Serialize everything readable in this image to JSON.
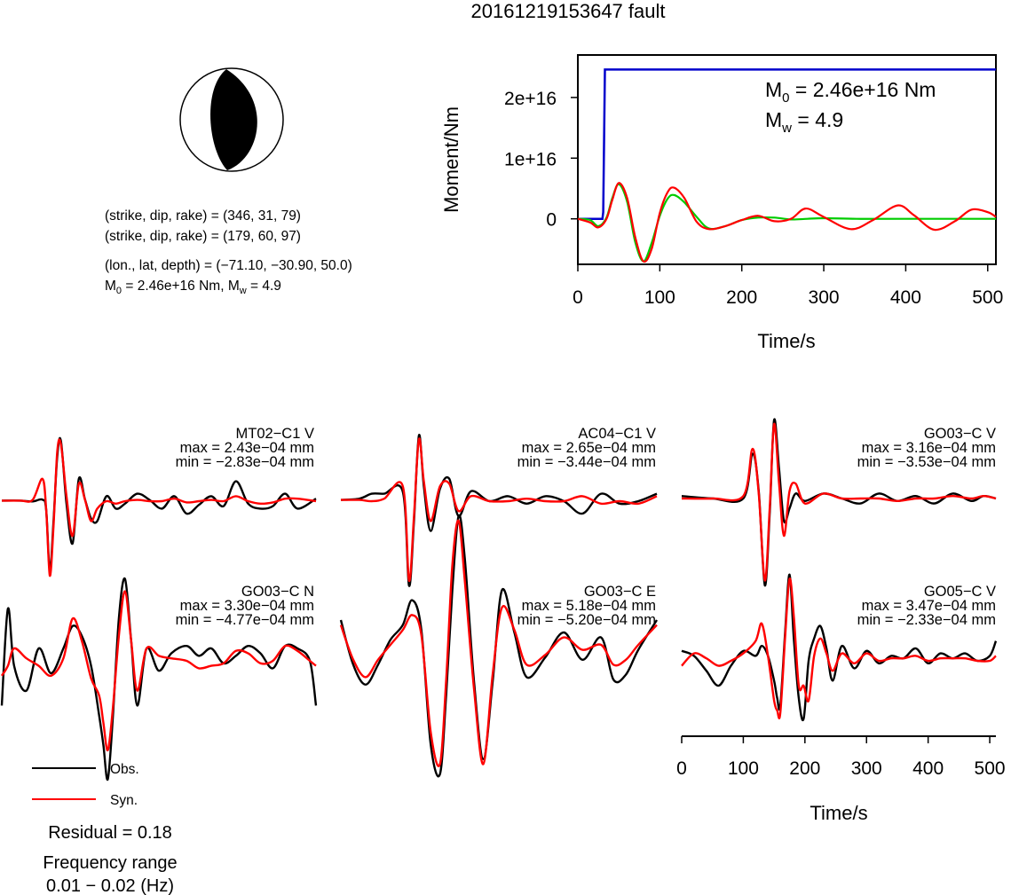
{
  "title": "20161219153647 fault",
  "mechanism": {
    "planes": [
      "(strike, dip, rake) = (346, 31, 79)",
      "(strike, dip, rake) = (179, 60, 97)"
    ],
    "location": "(lon., lat, depth) = (−71.10, −30.90, 50.0)",
    "moment_line": {
      "m0_label": "M",
      "m0_sub": "0",
      "m0_rest": " = 2.46e+16 Nm, M",
      "mw_sub": "w",
      "mw_rest": " = 4.9"
    }
  },
  "moment_plot": {
    "ylabel": "Moment/Nm",
    "xlabel": "Time/s",
    "xticks": [
      "0",
      "100",
      "200",
      "300",
      "400",
      "500"
    ],
    "yticks": [
      "0",
      "1e+16",
      "2e+16"
    ],
    "annot_m0": {
      "main": "M",
      "sub": "0",
      "rest": " = 2.46e+16 Nm"
    },
    "annot_mw": {
      "main": "M",
      "sub": "w",
      "rest": " = 4.9"
    }
  },
  "chart_data": [
    {
      "type": "line",
      "title": "",
      "xlabel": "Time/s",
      "ylabel": "Moment/Nm",
      "xlim": [
        0,
        510
      ],
      "ylim": [
        -7500000000000000.0,
        2.7e+16
      ],
      "grid": false,
      "series": [
        {
          "color": "#0000cc",
          "x": [
            0,
            30,
            31,
            33,
            510
          ],
          "y": [
            0,
            0,
            1100000000000000.0,
            2.46e+16,
            2.46e+16
          ]
        },
        {
          "color": "#00cc00",
          "x": [
            0,
            15,
            25,
            35,
            42,
            50,
            60,
            70,
            80,
            90,
            100,
            110,
            118,
            130,
            145,
            160,
            180,
            200,
            220,
            240,
            260,
            280,
            300,
            340,
            400,
            510
          ],
          "y": [
            0,
            -200000000000000.0,
            -1200000000000000.0,
            200000000000000.0,
            3400000000000000.0,
            5700000000000000.0,
            2900000000000000.0,
            -3800000000000000.0,
            -7000000000000000.0,
            -4000000000000000.0,
            500000000000000.0,
            3400000000000000.0,
            3900000000000000.0,
            2700000000000000.0,
            300000000000000.0,
            -1600000000000000.0,
            -1200000000000000.0,
            -200000000000000.0,
            200000000000000.0,
            200000000000000.0,
            -100000000000000.0,
            0,
            100000000000000.0,
            0,
            0,
            0
          ]
        },
        {
          "color": "#ff0000",
          "x": [
            0,
            15,
            25,
            35,
            42,
            50,
            60,
            70,
            80,
            90,
            100,
            110,
            118,
            130,
            145,
            160,
            180,
            200,
            220,
            240,
            260,
            278,
            300,
            333,
            360,
            390,
            410,
            435,
            460,
            480,
            500,
            510
          ],
          "y": [
            0,
            -600000000000000.0,
            -1400000000000000.0,
            0,
            3100000000000000.0,
            5900000000000000.0,
            3500000000000000.0,
            -3000000000000000.0,
            -7000000000000000.0,
            -5000000000000000.0,
            1000000000000000.0,
            4500000000000000.0,
            5100000000000000.0,
            3400000000000000.0,
            -500000000000000.0,
            -1700000000000000.0,
            -1200000000000000.0,
            -200000000000000.0,
            500000000000000.0,
            -400000000000000.0,
            0,
            1700000000000000.0,
            300000000000000.0,
            -1700000000000000.0,
            -200000000000000.0,
            2200000000000000.0,
            600000000000000.0,
            -1800000000000000.0,
            -400000000000000.0,
            1500000000000000.0,
            1100000000000000.0,
            300000000000000.0
          ]
        }
      ]
    },
    {
      "type": "line",
      "title": "MT02−C1 V",
      "max": "max = 2.43e−04 mm",
      "min": "min = −2.83e−04 mm",
      "series": [
        {
          "name": "Obs.",
          "color": "#000000",
          "x": [
            0,
            30,
            50,
            66,
            72,
            78,
            84,
            90,
            96,
            105,
            115,
            125,
            135,
            145,
            155,
            170,
            185,
            200,
            220,
            240,
            260,
            280,
            300,
            320,
            340,
            360,
            380,
            400,
            420,
            440,
            460,
            480,
            510
          ],
          "y": [
            0.02,
            0.02,
            -0.01,
            0.06,
            -0.34,
            -2.8,
            -0.8,
            1.8,
            2.43,
            -0.1,
            -1.7,
            0.9,
            0.08,
            -0.7,
            -0.8,
            0.2,
            -0.3,
            -0.1,
            0.3,
            0.05,
            -0.3,
            0.2,
            -0.5,
            -0.15,
            0.2,
            -0.2,
            0.8,
            -0.1,
            -0.3,
            -0.2,
            0.3,
            -0.3,
            0.1
          ]
        },
        {
          "name": "Syn.",
          "color": "#ff0000",
          "x": [
            0,
            30,
            50,
            66,
            72,
            78,
            84,
            90,
            96,
            105,
            115,
            125,
            135,
            145,
            155,
            170,
            185,
            200,
            220,
            240,
            260,
            280,
            300,
            320,
            340,
            360,
            380,
            400,
            420,
            440,
            460,
            480,
            510
          ],
          "y": [
            0.02,
            0.02,
            0.05,
            0.9,
            -0.32,
            -3.0,
            -1.0,
            2.0,
            2.3,
            0.2,
            -1.4,
            0.7,
            0.06,
            -0.8,
            -0.3,
            0.0,
            -0.1,
            0.0,
            0.05,
            0.0,
            0.0,
            0.1,
            -0.05,
            0.0,
            0.05,
            0.0,
            0.2,
            0.0,
            -0.1,
            -0.05,
            0.1,
            0.1,
            0.0
          ]
        }
      ]
    },
    {
      "type": "line",
      "title": "AC04−C1 V",
      "max": "max = 2.65e−04 mm",
      "min": "min = −3.44e−04 mm",
      "series": [
        {
          "name": "Obs.",
          "color": "#000000",
          "x": [
            0,
            30,
            50,
            70,
            100,
            110,
            118,
            126,
            134,
            145,
            160,
            175,
            190,
            210,
            240,
            270,
            300,
            330,
            360,
            390,
            420,
            450,
            480,
            510
          ],
          "y": [
            0.05,
            0.1,
            0.3,
            0.3,
            0.38,
            -3.4,
            -0.8,
            2.65,
            0.6,
            -1.2,
            0.5,
            0.9,
            -0.6,
            0.4,
            0.0,
            0.2,
            -0.1,
            0.2,
            0.0,
            -0.5,
            0.3,
            -0.1,
            0.0,
            0.3
          ]
        },
        {
          "name": "Syn.",
          "color": "#ff0000",
          "x": [
            0,
            30,
            50,
            70,
            100,
            110,
            118,
            126,
            134,
            145,
            160,
            175,
            190,
            210,
            240,
            270,
            300,
            330,
            360,
            390,
            420,
            450,
            480,
            510
          ],
          "y": [
            0.05,
            0.05,
            0.0,
            0.1,
            0.6,
            -3.2,
            -0.6,
            2.5,
            0.8,
            -0.8,
            0.6,
            0.7,
            -0.4,
            0.2,
            0.0,
            0.0,
            0.1,
            0.0,
            0.0,
            0.2,
            -0.1,
            0.0,
            -0.1,
            0.2
          ]
        }
      ]
    },
    {
      "type": "line",
      "title": "GO03−C V",
      "max": "max = 3.16e−04 mm",
      "min": "min = −3.53e−04 mm",
      "series": [
        {
          "name": "Obs.",
          "color": "#000000",
          "x": [
            0,
            50,
            100,
            115,
            125,
            135,
            143,
            150,
            158,
            166,
            175,
            185,
            200,
            230,
            260,
            290,
            320,
            350,
            380,
            410,
            440,
            470,
            490,
            510
          ],
          "y": [
            0.1,
            0.0,
            0.0,
            1.8,
            0.3,
            -3.5,
            -0.5,
            3.16,
            1.2,
            -0.9,
            -0.4,
            0.2,
            -0.1,
            0.2,
            0.0,
            -0.2,
            0.2,
            -0.1,
            0.1,
            -0.2,
            0.2,
            -0.1,
            0.1,
            0.0
          ]
        },
        {
          "name": "Syn.",
          "color": "#ff0000",
          "x": [
            0,
            50,
            100,
            115,
            125,
            135,
            143,
            150,
            158,
            166,
            175,
            185,
            200,
            230,
            260,
            290,
            320,
            350,
            380,
            410,
            440,
            470,
            490,
            510
          ],
          "y": [
            0.0,
            0.0,
            0.1,
            2.0,
            0.2,
            -3.3,
            -0.3,
            3.0,
            0.6,
            -1.5,
            0.3,
            0.6,
            -0.2,
            0.2,
            0.0,
            0.0,
            0.0,
            -0.1,
            0.0,
            0.0,
            0.1,
            0.0,
            0.1,
            0.0
          ]
        }
      ]
    },
    {
      "type": "line",
      "title": "GO03−C N",
      "max": "max = 3.30e−04 mm",
      "min": "min = −4.77e−04 mm",
      "series": [
        {
          "name": "Obs.",
          "color": "#000000",
          "x": [
            0,
            10,
            20,
            40,
            60,
            80,
            100,
            115,
            130,
            145,
            158,
            165,
            172,
            180,
            190,
            200,
            210,
            220,
            235,
            255,
            275,
            300,
            320,
            340,
            360,
            380,
            400,
            420,
            440,
            460,
            480,
            500,
            510
          ],
          "y": [
            -1.8,
            2.1,
            -0.2,
            -1.2,
            0.5,
            -0.5,
            0.5,
            1.4,
            1.0,
            -0.2,
            -2.2,
            -3.4,
            -4.77,
            -2.4,
            1.7,
            3.3,
            0.8,
            -1.8,
            0.5,
            -0.4,
            0.3,
            0.6,
            0.2,
            0.5,
            -0.1,
            0.2,
            0.6,
            0.3,
            -0.3,
            0.6,
            0.5,
            0.0,
            -1.8
          ]
        },
        {
          "name": "Syn.",
          "color": "#ff0000",
          "x": [
            0,
            10,
            20,
            40,
            60,
            80,
            100,
            115,
            130,
            145,
            158,
            165,
            172,
            180,
            190,
            200,
            210,
            220,
            235,
            255,
            275,
            300,
            320,
            340,
            360,
            380,
            400,
            420,
            440,
            460,
            480,
            500,
            510
          ],
          "y": [
            -0.6,
            -0.2,
            0.5,
            0.1,
            -0.2,
            -0.6,
            0.1,
            1.7,
            0.8,
            -0.7,
            -1.4,
            -2.5,
            -3.6,
            -2.0,
            1.0,
            2.8,
            0.8,
            -1.2,
            0.5,
            0.2,
            0.1,
            0.0,
            -0.3,
            -0.2,
            -0.1,
            0.4,
            0.3,
            -0.1,
            0.0,
            0.6,
            0.4,
            0.0,
            -0.2
          ]
        }
      ]
    },
    {
      "type": "line",
      "title": "GO03−C E",
      "max": "max = 5.18e−04 mm",
      "min": "min = −5.20e−04 mm",
      "series": [
        {
          "name": "Obs.",
          "color": "#000000",
          "x": [
            0,
            20,
            40,
            60,
            80,
            100,
            115,
            130,
            145,
            160,
            170,
            180,
            190,
            200,
            215,
            230,
            245,
            260,
            280,
            300,
            330,
            360,
            390,
            420,
            440,
            460,
            480,
            510
          ],
          "y": [
            1.0,
            -0.8,
            -1.6,
            -0.8,
            0.2,
            0.8,
            1.8,
            0.6,
            -4.0,
            -5.2,
            -2.0,
            2.2,
            5.18,
            3.5,
            -1.5,
            -4.6,
            -1.5,
            2.2,
            0.5,
            -1.3,
            -0.5,
            0.5,
            -0.6,
            0.3,
            -1.4,
            -1.2,
            -0.2,
            1.0
          ]
        },
        {
          "name": "Syn.",
          "color": "#ff0000",
          "x": [
            0,
            20,
            40,
            60,
            80,
            100,
            115,
            130,
            145,
            160,
            170,
            180,
            190,
            200,
            215,
            230,
            245,
            260,
            280,
            300,
            330,
            360,
            390,
            420,
            440,
            460,
            480,
            510
          ],
          "y": [
            0.8,
            -0.6,
            -1.3,
            -0.6,
            0.0,
            0.6,
            1.2,
            0.4,
            -3.5,
            -4.8,
            -1.4,
            3.2,
            5.0,
            2.6,
            -1.8,
            -4.8,
            -1.2,
            1.5,
            0.6,
            -0.8,
            -0.4,
            0.3,
            -0.2,
            0.0,
            -0.8,
            -0.6,
            0.0,
            0.8
          ]
        }
      ]
    },
    {
      "type": "line",
      "title": "GO05−C V",
      "max": "max = 3.47e−04 mm",
      "min": "min = −2.33e−04 mm",
      "series": [
        {
          "name": "Obs.",
          "color": "#000000",
          "x": [
            0,
            20,
            40,
            60,
            80,
            100,
            120,
            130,
            140,
            150,
            155,
            160,
            168,
            175,
            182,
            190,
            198,
            206,
            215,
            225,
            235,
            245,
            260,
            280,
            300,
            320,
            340,
            360,
            380,
            400,
            420,
            440,
            460,
            480,
            500,
            510
          ],
          "y": [
            0.4,
            0.2,
            -0.4,
            -1.0,
            -0.2,
            0.4,
            0.2,
            0.6,
            0.2,
            -0.8,
            -1.5,
            -1.8,
            1.2,
            3.47,
            0.9,
            -1.5,
            -2.33,
            0.0,
            0.9,
            1.4,
            0.5,
            -0.8,
            0.6,
            -0.3,
            0.4,
            -0.1,
            0.2,
            0.1,
            0.5,
            -0.1,
            0.3,
            0.1,
            0.3,
            0.0,
            0.2,
            0.8
          ]
        },
        {
          "name": "Syn.",
          "color": "#ff0000",
          "x": [
            0,
            20,
            40,
            60,
            80,
            100,
            120,
            130,
            140,
            150,
            155,
            160,
            168,
            175,
            182,
            190,
            198,
            206,
            215,
            225,
            235,
            245,
            260,
            280,
            300,
            320,
            340,
            360,
            380,
            400,
            420,
            440,
            460,
            480,
            500,
            510
          ],
          "y": [
            -0.2,
            0.3,
            0.1,
            -0.2,
            0.0,
            0.3,
            0.8,
            1.5,
            0.2,
            -1.6,
            -2.0,
            -2.1,
            1.0,
            3.3,
            1.8,
            -1.0,
            -1.0,
            -1.6,
            0.2,
            0.9,
            0.3,
            -0.4,
            0.3,
            -0.1,
            0.3,
            0.0,
            0.1,
            0.1,
            0.2,
            0.0,
            0.1,
            0.1,
            0.1,
            0.0,
            0.0,
            0.2
          ]
        }
      ]
    }
  ],
  "trace_axis": {
    "xlabel": "Time/s",
    "xticks": [
      "0",
      "100",
      "200",
      "300",
      "400",
      "500"
    ]
  },
  "legend": {
    "obs": "Obs.",
    "syn": "Syn."
  },
  "footer": {
    "residual": "Residual = 0.18",
    "freq_title": "Frequency range",
    "freq_range": "0.01 − 0.02 (Hz)"
  }
}
